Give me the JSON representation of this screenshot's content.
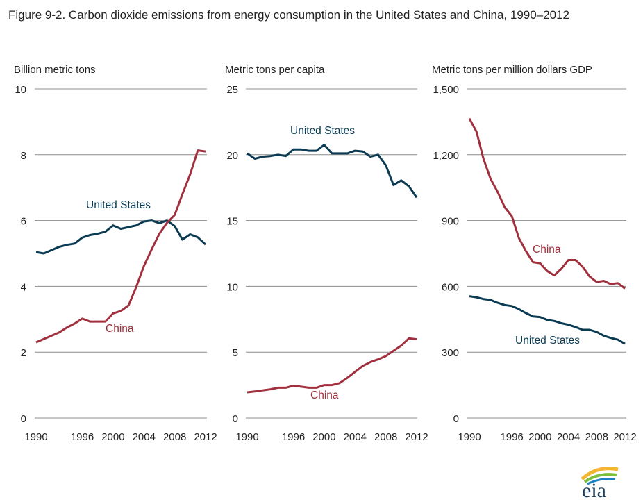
{
  "title": "Figure 9-2. Carbon dioxide emissions from energy consumption in the United States and China, 1990–2012",
  "logo_text": "eia",
  "colors": {
    "us": "#0b3b52",
    "china": "#a0303e",
    "grid": "#8c8c8c"
  },
  "chart_data": [
    {
      "type": "line",
      "ylabel": "Billion metric tons",
      "ylim": [
        0,
        10
      ],
      "yticks": [
        "0",
        "2",
        "4",
        "6",
        "8",
        "10"
      ],
      "ytick_values": [
        0,
        2,
        4,
        6,
        8,
        10
      ],
      "xticks": [
        "1990",
        "1996",
        "2000",
        "2004",
        "2008",
        "2012"
      ],
      "xtick_values": [
        1990,
        1996,
        2000,
        2004,
        2008,
        2012
      ],
      "grid": true,
      "x": [
        1990,
        1991,
        1992,
        1993,
        1994,
        1995,
        1996,
        1997,
        1998,
        1999,
        2000,
        2001,
        2002,
        2003,
        2004,
        2005,
        2006,
        2007,
        2008,
        2009,
        2010,
        2011,
        2012
      ],
      "series": [
        {
          "name": "United States",
          "values": [
            5.04,
            5.0,
            5.1,
            5.2,
            5.26,
            5.3,
            5.48,
            5.56,
            5.6,
            5.66,
            5.85,
            5.75,
            5.8,
            5.85,
            5.97,
            6.0,
            5.92,
            6.0,
            5.83,
            5.42,
            5.58,
            5.49,
            5.27
          ]
        },
        {
          "name": "China",
          "values": [
            2.3,
            2.4,
            2.5,
            2.6,
            2.75,
            2.87,
            3.02,
            2.93,
            2.93,
            2.93,
            3.18,
            3.25,
            3.42,
            3.98,
            4.62,
            5.12,
            5.6,
            5.93,
            6.17,
            6.8,
            7.4,
            8.13,
            8.1
          ]
        }
      ]
    },
    {
      "type": "line",
      "ylabel": "Metric tons per capita",
      "ylim": [
        0,
        25
      ],
      "yticks": [
        "0",
        "5",
        "10",
        "15",
        "20",
        "25"
      ],
      "ytick_values": [
        0,
        5,
        10,
        15,
        20,
        25
      ],
      "xticks": [
        "1990",
        "1996",
        "2000",
        "2004",
        "2008",
        "2012"
      ],
      "xtick_values": [
        1990,
        1996,
        2000,
        2004,
        2008,
        2012
      ],
      "grid": true,
      "x": [
        1990,
        1991,
        1992,
        1993,
        1994,
        1995,
        1996,
        1997,
        1998,
        1999,
        2000,
        2001,
        2002,
        2003,
        2004,
        2005,
        2006,
        2007,
        2008,
        2009,
        2010,
        2011,
        2012
      ],
      "series": [
        {
          "name": "United States",
          "values": [
            20.1,
            19.7,
            19.85,
            19.9,
            20.0,
            19.9,
            20.4,
            20.4,
            20.3,
            20.3,
            20.75,
            20.1,
            20.1,
            20.1,
            20.3,
            20.25,
            19.85,
            20.0,
            19.2,
            17.7,
            18.05,
            17.6,
            16.75
          ]
        },
        {
          "name": "China",
          "values": [
            1.95,
            2.02,
            2.1,
            2.18,
            2.3,
            2.3,
            2.45,
            2.38,
            2.3,
            2.3,
            2.5,
            2.5,
            2.65,
            3.05,
            3.5,
            3.95,
            4.25,
            4.45,
            4.7,
            5.1,
            5.5,
            6.05,
            5.98
          ]
        }
      ]
    },
    {
      "type": "line",
      "ylabel": "Metric tons per million dollars GDP",
      "ylim": [
        0,
        1500
      ],
      "yticks": [
        "0",
        "300",
        "600",
        "900",
        "1,200",
        "1,500"
      ],
      "ytick_values": [
        0,
        300,
        600,
        900,
        1200,
        1500
      ],
      "xticks": [
        "1990",
        "1996",
        "2000",
        "2004",
        "2008",
        "2012"
      ],
      "xtick_values": [
        1990,
        1996,
        2000,
        2004,
        2008,
        2012
      ],
      "grid": true,
      "x": [
        1990,
        1991,
        1992,
        1993,
        1994,
        1995,
        1996,
        1997,
        1998,
        1999,
        2000,
        2001,
        2002,
        2003,
        2004,
        2005,
        2006,
        2007,
        2008,
        2009,
        2010,
        2011,
        2012
      ],
      "series": [
        {
          "name": "China",
          "values": [
            1365,
            1305,
            1180,
            1090,
            1030,
            960,
            920,
            820,
            760,
            710,
            705,
            670,
            650,
            680,
            720,
            720,
            690,
            645,
            620,
            625,
            610,
            615,
            590
          ]
        },
        {
          "name": "United States",
          "values": [
            555,
            550,
            542,
            538,
            525,
            515,
            510,
            496,
            478,
            463,
            460,
            447,
            442,
            432,
            425,
            415,
            402,
            402,
            392,
            375,
            365,
            357,
            338
          ]
        }
      ]
    }
  ]
}
